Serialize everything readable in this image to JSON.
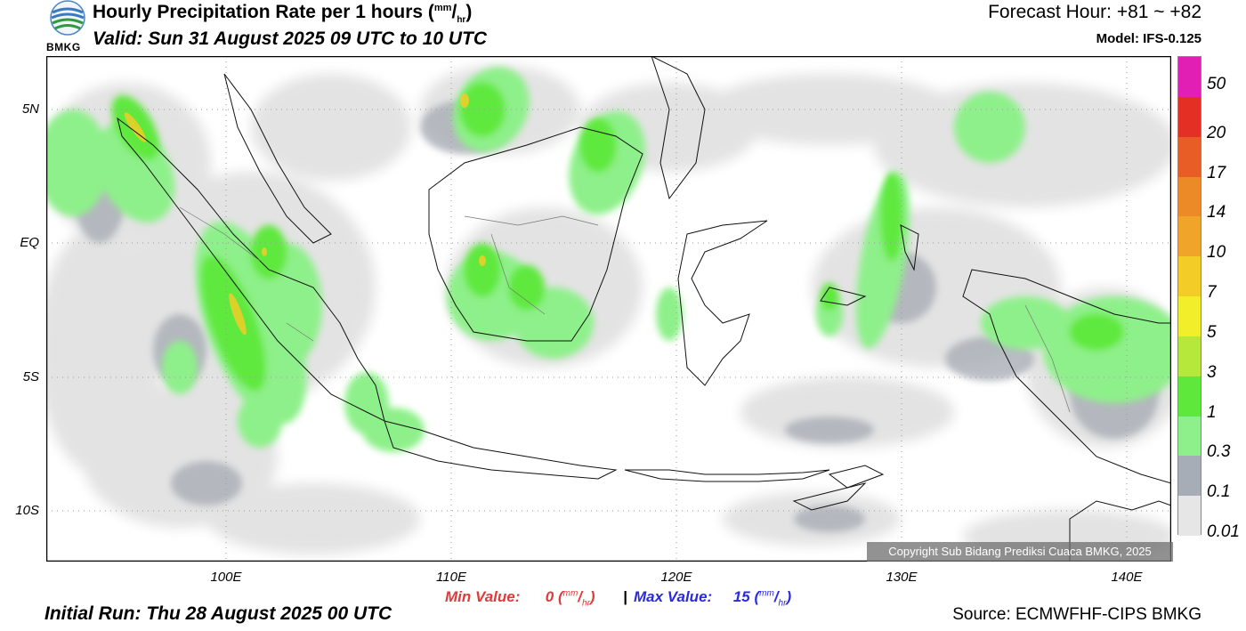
{
  "header": {
    "title_main": "Hourly Precipitation Rate per 1 hours (",
    "unit_num": "mm",
    "unit_den": "hr",
    "title_close": ")",
    "valid": "Valid: Sun 31 August 2025 09 UTC to 10 UTC",
    "forecast_hour": "Forecast Hour: +81 ~ +82",
    "model": "Model: IFS-0.125",
    "logo_text": "BMKG"
  },
  "map": {
    "lat_labels": [
      "5N",
      "EQ",
      "5S",
      "10S"
    ],
    "lon_labels": [
      "100E",
      "110E",
      "120E",
      "130E",
      "140E"
    ],
    "lat_values": [
      5,
      0,
      -5,
      -10
    ],
    "lon_values": [
      100,
      110,
      120,
      130,
      140
    ],
    "extent": {
      "lon_min": 92,
      "lon_max": 142,
      "lat_min": -12,
      "lat_max": 7
    }
  },
  "colorbar": {
    "labels": [
      "50",
      "20",
      "17",
      "14",
      "10",
      "7",
      "5",
      "3",
      "1",
      "0.3",
      "0.1",
      "0.01"
    ],
    "colors": [
      "#e21fb5",
      "#e43024",
      "#e85d26",
      "#ec8a27",
      "#f0a42a",
      "#f3cc28",
      "#f2ef2a",
      "#b5e83a",
      "#5ee83c",
      "#8ef08a",
      "#a7adb6",
      "#e6e6e6"
    ]
  },
  "copyright": "Copyright Sub Bidang Prediksi Cuaca BMKG, 2025",
  "stats": {
    "min_label": "Min Value:",
    "min_value": "0",
    "sep": "|",
    "max_label": "Max Value:",
    "max_value": "15",
    "unit_num": "mm",
    "unit_den": "hr",
    "min_color": "#e23a3a",
    "max_color": "#2a2ae0"
  },
  "footer": {
    "initial_run": "Initial Run: Thu 28 August 2025 00 UTC",
    "source": "Source: ECMWFHF-CIPS BMKG"
  }
}
